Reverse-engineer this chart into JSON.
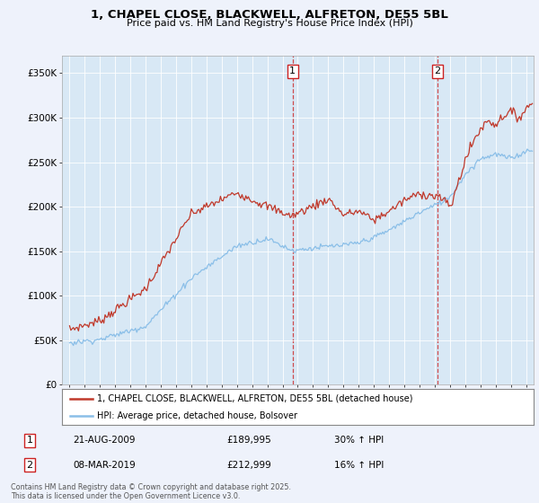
{
  "title_line1": "1, CHAPEL CLOSE, BLACKWELL, ALFRETON, DE55 5BL",
  "title_line2": "Price paid vs. HM Land Registry's House Price Index (HPI)",
  "red_label": "1, CHAPEL CLOSE, BLACKWELL, ALFRETON, DE55 5BL (detached house)",
  "blue_label": "HPI: Average price, detached house, Bolsover",
  "vline1_x": 2009.65,
  "vline2_x": 2019.18,
  "background_color": "#eef2fb",
  "plot_bg_color": "#d8e8f5",
  "ylim": [
    0,
    370000
  ],
  "xlim_start": 1994.5,
  "xlim_end": 2025.5,
  "footer": "Contains HM Land Registry data © Crown copyright and database right 2025.\nThis data is licensed under the Open Government Licence v3.0."
}
